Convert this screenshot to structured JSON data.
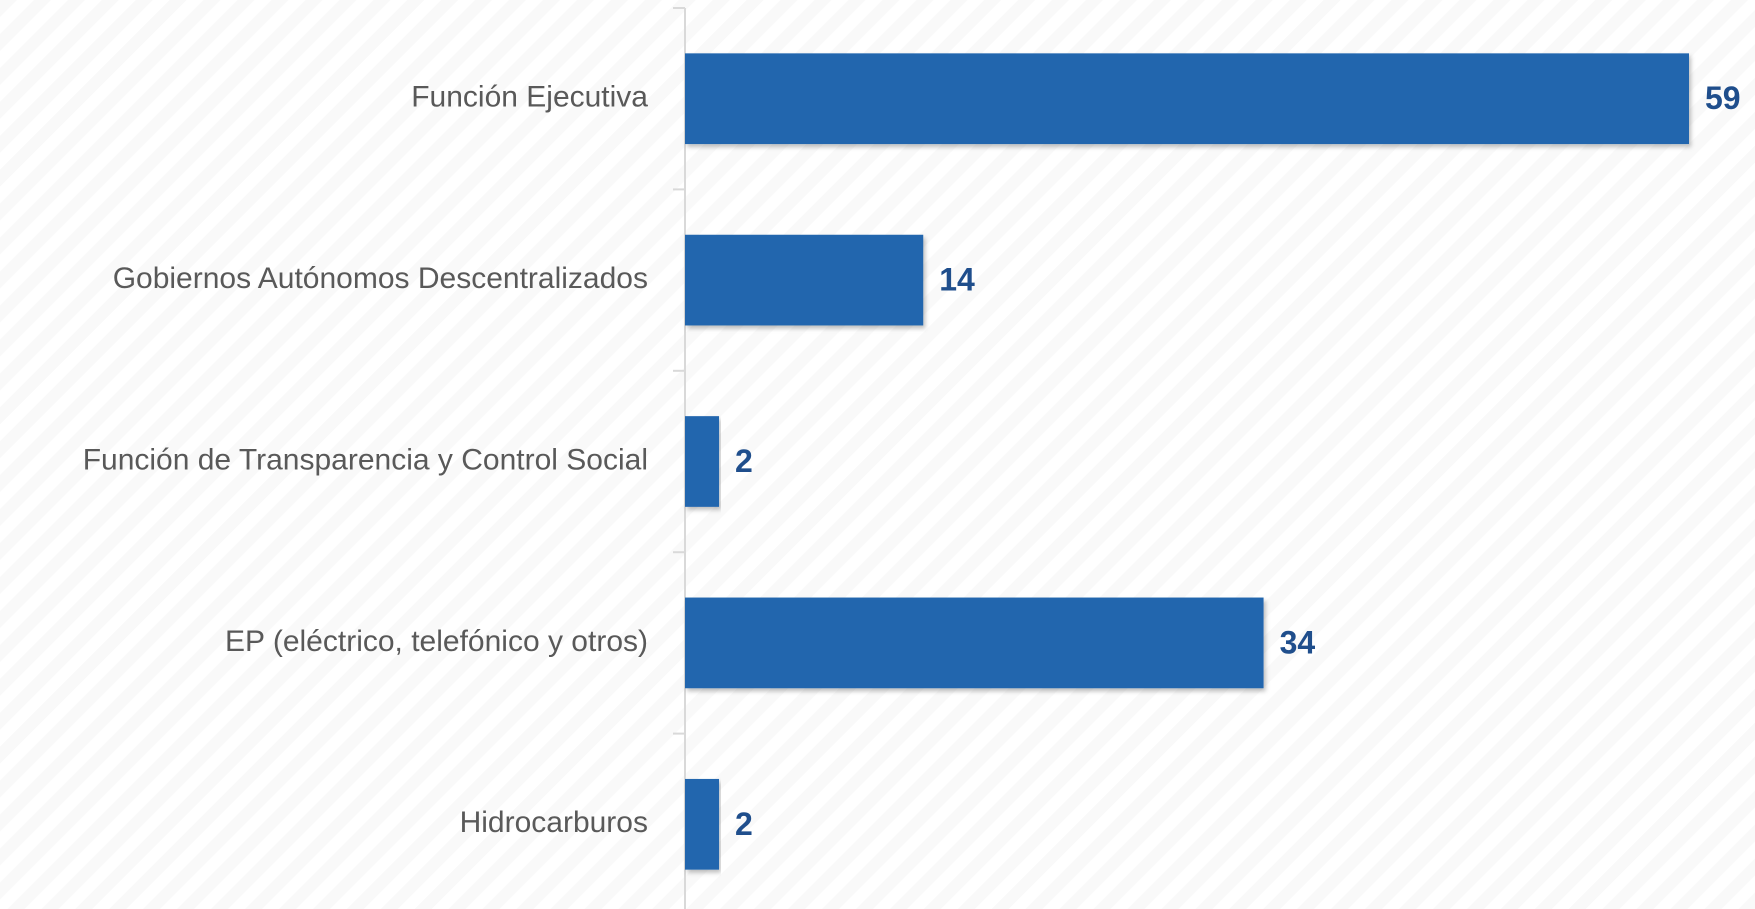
{
  "chart_data": {
    "type": "bar",
    "orientation": "horizontal",
    "categories": [
      "Función Ejecutiva",
      "Gobiernos Autónomos Descentralizados",
      "Función de Transparencia y Control Social",
      "EP (eléctrico, telefónico y otros)",
      "Hidrocarburos"
    ],
    "values": [
      59,
      14,
      2,
      34,
      2
    ],
    "color": "#2166ae"
  }
}
